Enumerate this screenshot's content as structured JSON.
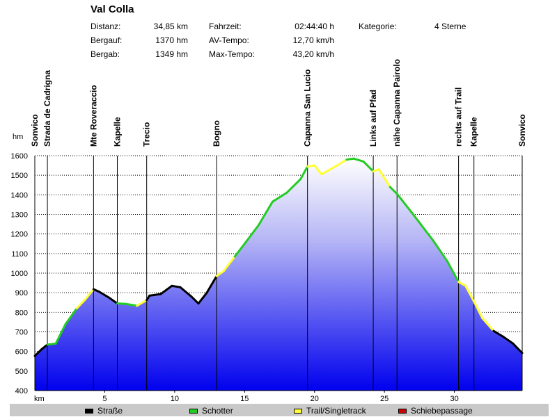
{
  "header": {
    "title": "Val Colla",
    "stats": [
      {
        "label": "Distanz:",
        "value": "34,85 km"
      },
      {
        "label": "Bergauf:",
        "value": "1370 hm"
      },
      {
        "label": "Bergab:",
        "value": "1349 hm"
      },
      {
        "label": "Fahrzeit:",
        "value": "02:44:40 h"
      },
      {
        "label": "AV-Tempo:",
        "value": "12,70 km/h"
      },
      {
        "label": "Max-Tempo:",
        "value": "43,20 km/h"
      },
      {
        "label": "Kategorie:",
        "value": "4 Sterne"
      }
    ]
  },
  "legend": {
    "items": [
      {
        "label": "Straße",
        "color": "#000000"
      },
      {
        "label": "Schotter",
        "color": "#22cc22"
      },
      {
        "label": "Trail/Singletrack",
        "color": "#ffff33"
      },
      {
        "label": "Schiebepassage",
        "color": "#cc0000"
      }
    ]
  },
  "chart_data": {
    "type": "area",
    "ylabel": "hm",
    "xlabel": "km",
    "xlim": [
      0,
      34.85
    ],
    "ylim": [
      400,
      1600
    ],
    "yticks": [
      "400",
      "500",
      "600",
      "700",
      "800",
      "900",
      "1000",
      "1100",
      "1200",
      "1300",
      "1400",
      "1500",
      "1600"
    ],
    "xticks": [
      "5",
      "10",
      "15",
      "20",
      "25",
      "30"
    ],
    "waypoints": [
      {
        "name": "Sonvico",
        "km": 0
      },
      {
        "name": "Strada de Cadrigna",
        "km": 0.9
      },
      {
        "name": "Mte Roveraccio",
        "km": 4.2
      },
      {
        "name": "Kapelle",
        "km": 5.9
      },
      {
        "name": "Trecio",
        "km": 8.0
      },
      {
        "name": "Bogno",
        "km": 13.0
      },
      {
        "name": "Capanna San Lucio",
        "km": 19.5
      },
      {
        "name": "Links auf Pfad",
        "km": 24.2
      },
      {
        "name": "nähe Capanna Pairolo",
        "km": 25.9
      },
      {
        "name": "rechts auf Trail",
        "km": 30.3
      },
      {
        "name": "Kapelle",
        "km": 31.4
      },
      {
        "name": "Sonvico",
        "km": 34.85
      }
    ],
    "profile": [
      {
        "km": 0.0,
        "elev": 577,
        "surface": "Straße"
      },
      {
        "km": 0.5,
        "elev": 612,
        "surface": "Straße"
      },
      {
        "km": 0.9,
        "elev": 635,
        "surface": "Straße"
      },
      {
        "km": 1.5,
        "elev": 640,
        "surface": "Schotter"
      },
      {
        "km": 2.2,
        "elev": 740,
        "surface": "Schotter"
      },
      {
        "km": 3.0,
        "elev": 820,
        "surface": "Schotter"
      },
      {
        "km": 3.6,
        "elev": 865,
        "surface": "Trail/Singletrack"
      },
      {
        "km": 4.2,
        "elev": 918,
        "surface": "Trail/Singletrack"
      },
      {
        "km": 4.6,
        "elev": 905,
        "surface": "Straße"
      },
      {
        "km": 5.3,
        "elev": 875,
        "surface": "Straße"
      },
      {
        "km": 5.9,
        "elev": 845,
        "surface": "Straße"
      },
      {
        "km": 6.5,
        "elev": 843,
        "surface": "Schotter"
      },
      {
        "km": 7.3,
        "elev": 833,
        "surface": "Schotter"
      },
      {
        "km": 8.0,
        "elev": 862,
        "surface": "Trail/Singletrack"
      },
      {
        "km": 8.2,
        "elev": 885,
        "surface": "Straße"
      },
      {
        "km": 9.0,
        "elev": 893,
        "surface": "Straße"
      },
      {
        "km": 9.8,
        "elev": 935,
        "surface": "Straße"
      },
      {
        "km": 10.4,
        "elev": 928,
        "surface": "Straße"
      },
      {
        "km": 11.2,
        "elev": 880,
        "surface": "Straße"
      },
      {
        "km": 11.7,
        "elev": 845,
        "surface": "Straße"
      },
      {
        "km": 12.3,
        "elev": 900,
        "surface": "Straße"
      },
      {
        "km": 13.0,
        "elev": 985,
        "surface": "Straße"
      },
      {
        "km": 13.5,
        "elev": 1010,
        "surface": "Trail/Singletrack"
      },
      {
        "km": 14.3,
        "elev": 1085,
        "surface": "Trail/Singletrack"
      },
      {
        "km": 15.0,
        "elev": 1150,
        "surface": "Schotter"
      },
      {
        "km": 16.0,
        "elev": 1245,
        "surface": "Schotter"
      },
      {
        "km": 17.0,
        "elev": 1365,
        "surface": "Schotter"
      },
      {
        "km": 18.0,
        "elev": 1410,
        "surface": "Schotter"
      },
      {
        "km": 19.0,
        "elev": 1480,
        "surface": "Schotter"
      },
      {
        "km": 19.5,
        "elev": 1545,
        "surface": "Schotter"
      },
      {
        "km": 20.0,
        "elev": 1550,
        "surface": "Trail/Singletrack"
      },
      {
        "km": 20.5,
        "elev": 1505,
        "surface": "Trail/Singletrack"
      },
      {
        "km": 21.5,
        "elev": 1545,
        "surface": "Trail/Singletrack"
      },
      {
        "km": 22.3,
        "elev": 1580,
        "surface": "Trail/Singletrack"
      },
      {
        "km": 22.8,
        "elev": 1585,
        "surface": "Schotter"
      },
      {
        "km": 23.5,
        "elev": 1570,
        "surface": "Schotter"
      },
      {
        "km": 24.2,
        "elev": 1520,
        "surface": "Schotter"
      },
      {
        "km": 24.6,
        "elev": 1530,
        "surface": "Trail/Singletrack"
      },
      {
        "km": 25.4,
        "elev": 1440,
        "surface": "Trail/Singletrack"
      },
      {
        "km": 25.9,
        "elev": 1405,
        "surface": "Schotter"
      },
      {
        "km": 27.0,
        "elev": 1305,
        "surface": "Schotter"
      },
      {
        "km": 28.5,
        "elev": 1165,
        "surface": "Schotter"
      },
      {
        "km": 29.5,
        "elev": 1060,
        "surface": "Schotter"
      },
      {
        "km": 30.3,
        "elev": 955,
        "surface": "Schotter"
      },
      {
        "km": 30.8,
        "elev": 935,
        "surface": "Trail/Singletrack"
      },
      {
        "km": 31.4,
        "elev": 855,
        "surface": "Trail/Singletrack"
      },
      {
        "km": 32.0,
        "elev": 770,
        "surface": "Trail/Singletrack"
      },
      {
        "km": 32.8,
        "elev": 705,
        "surface": "Trail/Singletrack"
      },
      {
        "km": 33.5,
        "elev": 675,
        "surface": "Straße"
      },
      {
        "km": 34.2,
        "elev": 640,
        "surface": "Straße"
      },
      {
        "km": 34.85,
        "elev": 592,
        "surface": "Straße"
      }
    ]
  }
}
